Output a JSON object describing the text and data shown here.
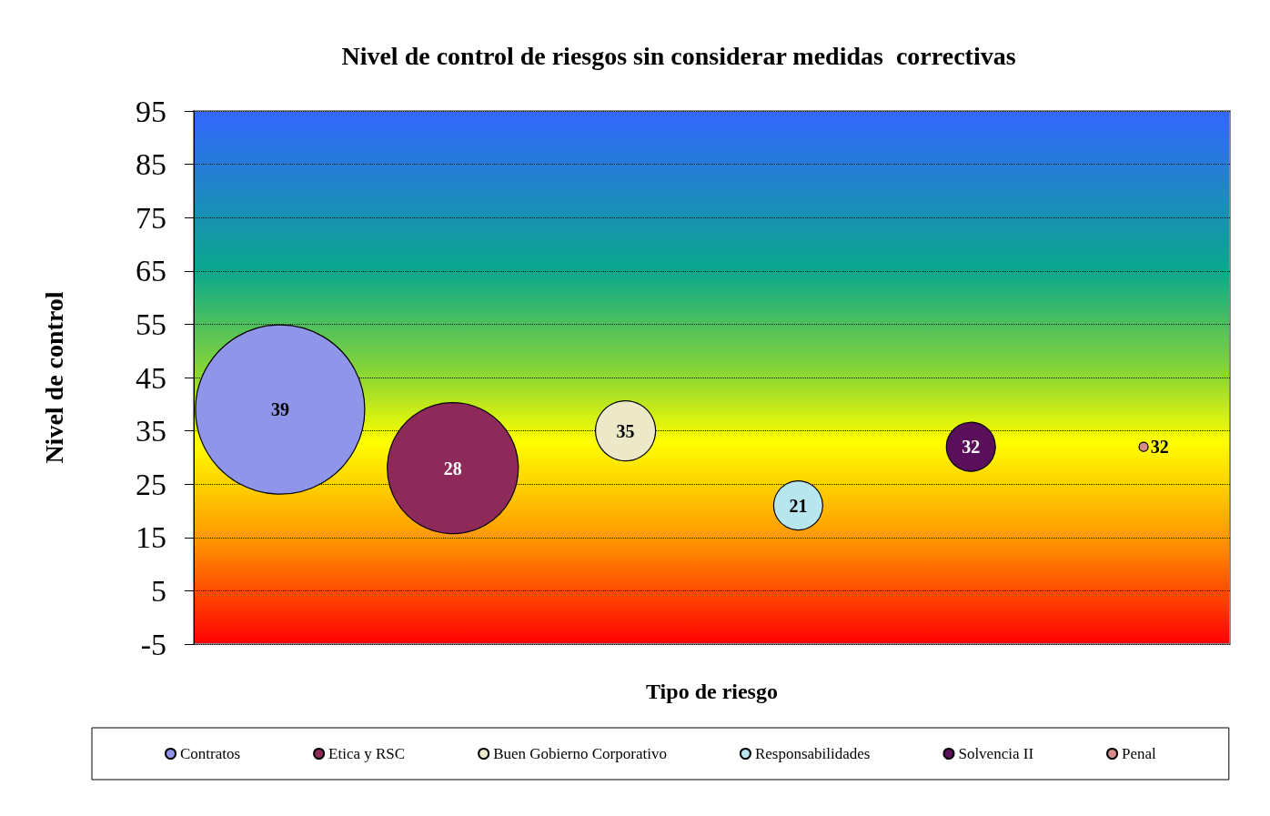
{
  "chart_data": {
    "type": "bubble",
    "title": "Nivel de control de riesgos sin considerar medidas  correctivas",
    "xlabel": "Tipo de riesgo",
    "ylabel": "Nivel de control",
    "categories": [
      null,
      null,
      null,
      null,
      null,
      null
    ],
    "series": [
      {
        "name": "Contratos",
        "color": "#8f95e8",
        "values": [
          39,
          null,
          null,
          null,
          null,
          null
        ],
        "sizes": [
          1,
          null,
          null,
          null,
          null,
          null
        ]
      },
      {
        "name": "Etica y RSC",
        "color": "#8e2a5a",
        "values": [
          null,
          28,
          null,
          null,
          null,
          null
        ],
        "sizes": [
          null,
          0.6,
          null,
          null,
          null,
          null
        ]
      },
      {
        "name": "Buen Gobierno Corporativo",
        "color": "#ece8c8",
        "values": [
          null,
          null,
          35,
          null,
          null,
          null
        ],
        "sizes": [
          null,
          null,
          0.126,
          null,
          null,
          null
        ]
      },
      {
        "name": "Responsabilidades",
        "color": "#b8e6ee",
        "values": [
          null,
          null,
          null,
          21,
          null,
          null
        ],
        "sizes": [
          null,
          null,
          null,
          0.084,
          null,
          null
        ]
      },
      {
        "name": "Solvencia II",
        "color": "#5a0f5a",
        "values": [
          null,
          null,
          null,
          null,
          32,
          null
        ],
        "sizes": [
          null,
          null,
          null,
          null,
          0.084,
          null
        ]
      },
      {
        "name": "Penal",
        "color": "#d88a8a",
        "values": [
          null,
          null,
          null,
          null,
          null,
          32
        ],
        "sizes": [
          null,
          null,
          null,
          null,
          null,
          0.003
        ]
      }
    ],
    "ylim": [
      -5,
      95
    ],
    "yticks": [
      -5,
      5,
      15,
      25,
      35,
      45,
      55,
      65,
      75,
      85,
      95
    ],
    "grid": "y",
    "legend": "bottom",
    "data_labels": true
  }
}
